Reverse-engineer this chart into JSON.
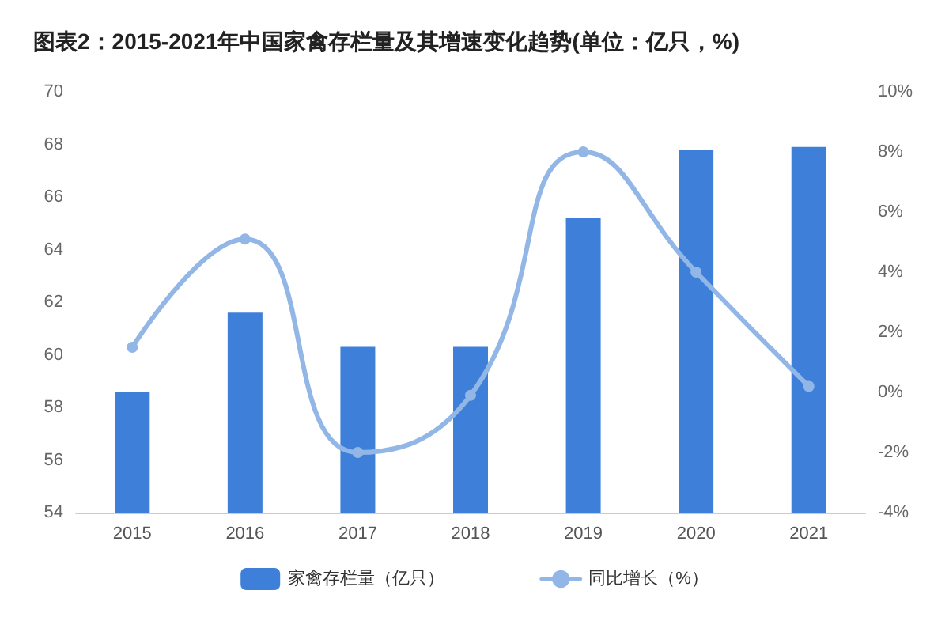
{
  "chart_data": {
    "type": "bar",
    "title": "图表2：2015-2021年中国家禽存栏量及其增速变化趋势(单位：亿只，%)",
    "categories": [
      "2015",
      "2016",
      "2017",
      "2018",
      "2019",
      "2020",
      "2021"
    ],
    "series": [
      {
        "name": "家禽存栏量（亿只）",
        "color": "#3d7fd9",
        "values": [
          58.6,
          61.6,
          60.3,
          60.3,
          65.2,
          67.8,
          67.9
        ]
      },
      {
        "name": "同比增长（%）",
        "type": "line",
        "axis": "y2",
        "color": "#92b6e6",
        "marker": "circle",
        "values": [
          1.5,
          5.1,
          -2.0,
          -0.1,
          8.0,
          4.0,
          0.2
        ]
      }
    ],
    "ylim": [
      54,
      70
    ],
    "yticks": [
      54,
      56,
      58,
      60,
      62,
      64,
      66,
      68,
      70
    ],
    "y2lim": [
      -4,
      10
    ],
    "y2ticks": [
      {
        "value": -4,
        "label": "-4%"
      },
      {
        "value": -2,
        "label": "-2%"
      },
      {
        "value": 0,
        "label": "0%"
      },
      {
        "value": 2,
        "label": "2%"
      },
      {
        "value": 4,
        "label": "4%"
      },
      {
        "value": 6,
        "label": "6%"
      },
      {
        "value": 8,
        "label": "8%"
      },
      {
        "value": 10,
        "label": "10%"
      }
    ],
    "legend": "bottom",
    "grid": false
  }
}
